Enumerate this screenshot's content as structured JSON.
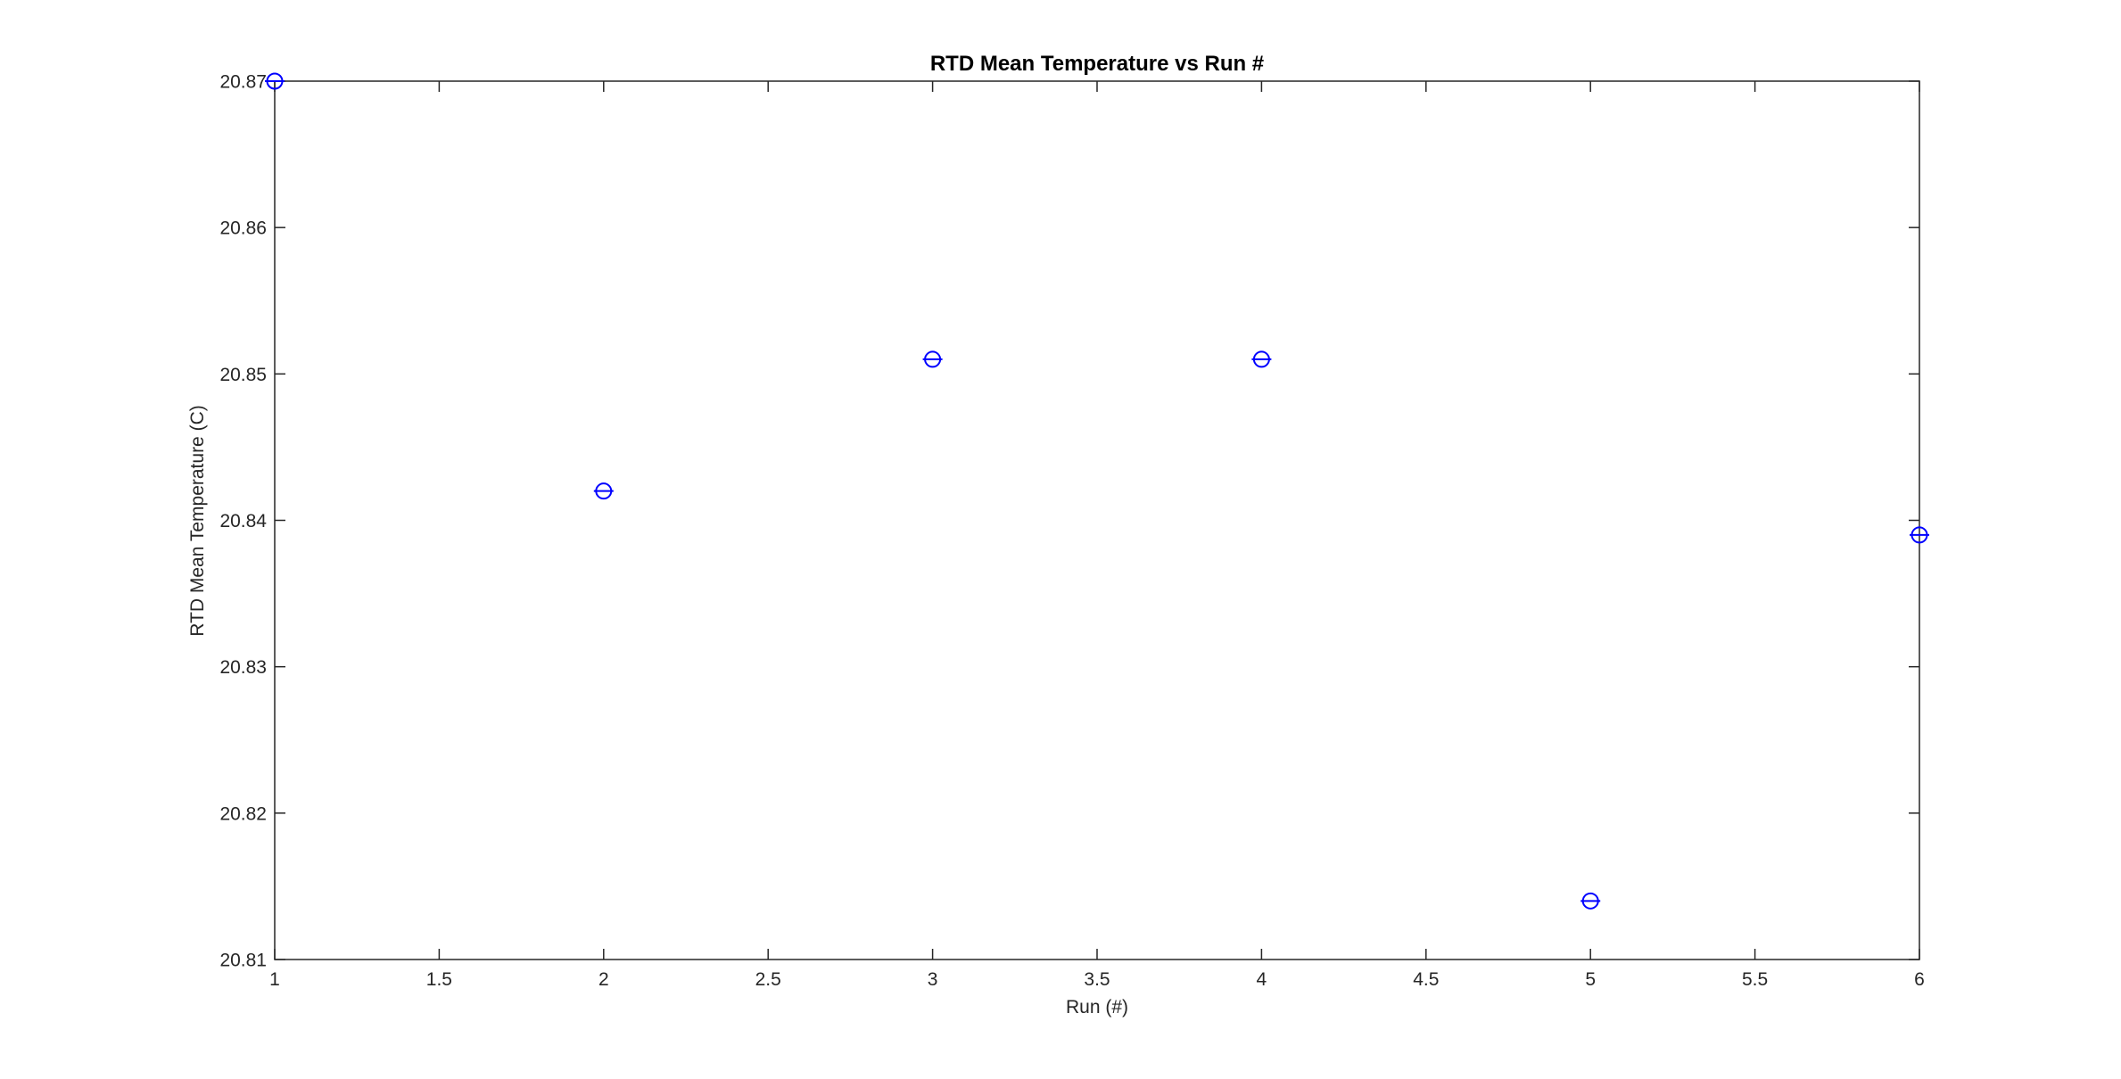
{
  "figure": {
    "background": "#ffffff"
  },
  "chart_data": {
    "type": "scatter",
    "title": "RTD Mean Temperature vs Run #",
    "xlabel": "Run (#)",
    "ylabel": "RTD Mean Temperature (C)",
    "series": [
      {
        "name": "RTD Mean Temperature",
        "x": [
          1,
          2,
          3,
          4,
          5,
          6
        ],
        "y": [
          20.87,
          20.842,
          20.851,
          20.851,
          20.814,
          20.839
        ]
      }
    ],
    "xlim": [
      1,
      6
    ],
    "ylim": [
      20.81,
      20.87
    ],
    "xticks": [
      1,
      1.5,
      2,
      2.5,
      3,
      3.5,
      4,
      4.5,
      5,
      5.5,
      6
    ],
    "yticks": [
      20.81,
      20.82,
      20.83,
      20.84,
      20.85,
      20.86,
      20.87
    ],
    "grid": false,
    "legend_position": "none",
    "marker": "open-circle-with-horizontal-errorbar-cap",
    "marker_color": "#0000ff",
    "axis_color": "#262626",
    "title_color": "#000000",
    "background": "#ffffff"
  }
}
